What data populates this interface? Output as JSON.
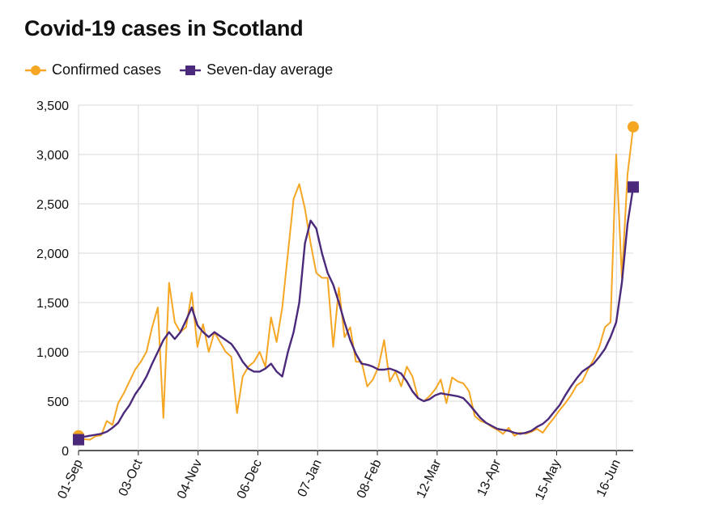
{
  "colors": {
    "confirmed": "#f5a623",
    "average": "#4b2a7b",
    "grid": "#d9d9d9",
    "axis": "#222222"
  },
  "chart_data": {
    "type": "line",
    "title": "Covid-19 cases in Scotland",
    "legend": [
      "Confirmed cases",
      "Seven-day average"
    ],
    "legend_position": "top-left",
    "grid": true,
    "xlabel": "",
    "ylabel": "",
    "ylim": [
      0,
      3500
    ],
    "yticks": [
      "0",
      "500",
      "1,000",
      "1,500",
      "2,000",
      "2,500",
      "3,000",
      "3,500"
    ],
    "ytick_values": [
      0,
      500,
      1000,
      1500,
      2000,
      2500,
      3000,
      3500
    ],
    "xlim": [
      "2020-09-01",
      "2021-06-25"
    ],
    "xticks": [
      "01-Sep",
      "03-Oct",
      "04-Nov",
      "06-Dec",
      "07-Jan",
      "08-Feb",
      "12-Mar",
      "13-Apr",
      "15-May",
      "16-Jun"
    ],
    "xtick_dates": [
      "2020-09-01",
      "2020-10-03",
      "2020-11-04",
      "2020-12-06",
      "2021-01-07",
      "2021-02-08",
      "2021-03-12",
      "2021-04-13",
      "2021-05-15",
      "2021-06-16"
    ],
    "series": [
      {
        "name": "Confirmed cases",
        "x_start": "2020-09-01",
        "x_end": "2021-06-25",
        "values": [
          150,
          115,
          110,
          145,
          155,
          300,
          260,
          480,
          580,
          700,
          820,
          900,
          1000,
          1250,
          1450,
          330,
          1700,
          1300,
          1200,
          1250,
          1600,
          1050,
          1280,
          1000,
          1200,
          1100,
          1000,
          950,
          380,
          750,
          850,
          900,
          1000,
          850,
          1350,
          1100,
          1450,
          2000,
          2550,
          2700,
          2450,
          2100,
          1800,
          1750,
          1750,
          1050,
          1650,
          1150,
          1250,
          900,
          900,
          650,
          720,
          850,
          1120,
          700,
          800,
          650,
          850,
          750,
          530,
          500,
          550,
          620,
          720,
          480,
          740,
          700,
          680,
          600,
          350,
          300,
          280,
          240,
          210,
          170,
          230,
          150,
          180,
          170,
          190,
          220,
          180,
          260,
          330,
          410,
          480,
          560,
          660,
          700,
          820,
          920,
          1050,
          1250,
          1300,
          3000,
          1750,
          2800,
          3280
        ],
        "marker_last": true
      },
      {
        "name": "Seven-day average",
        "x_start": "2020-09-01",
        "x_end": "2021-06-25",
        "values": [
          110,
          140,
          150,
          160,
          170,
          190,
          230,
          280,
          380,
          460,
          570,
          650,
          750,
          880,
          1000,
          1120,
          1200,
          1130,
          1200,
          1320,
          1450,
          1270,
          1200,
          1150,
          1200,
          1160,
          1120,
          1080,
          1000,
          900,
          830,
          800,
          800,
          830,
          880,
          800,
          750,
          1000,
          1200,
          1500,
          2100,
          2330,
          2250,
          2000,
          1800,
          1680,
          1500,
          1300,
          1120,
          980,
          880,
          870,
          850,
          820,
          820,
          830,
          810,
          780,
          700,
          600,
          530,
          500,
          520,
          560,
          580,
          570,
          560,
          550,
          530,
          470,
          400,
          330,
          280,
          250,
          220,
          210,
          200,
          180,
          170,
          180,
          200,
          240,
          270,
          320,
          390,
          460,
          560,
          650,
          730,
          800,
          840,
          880,
          950,
          1030,
          1150,
          1300,
          1700,
          2300,
          2670
        ],
        "marker_last": true
      }
    ]
  }
}
